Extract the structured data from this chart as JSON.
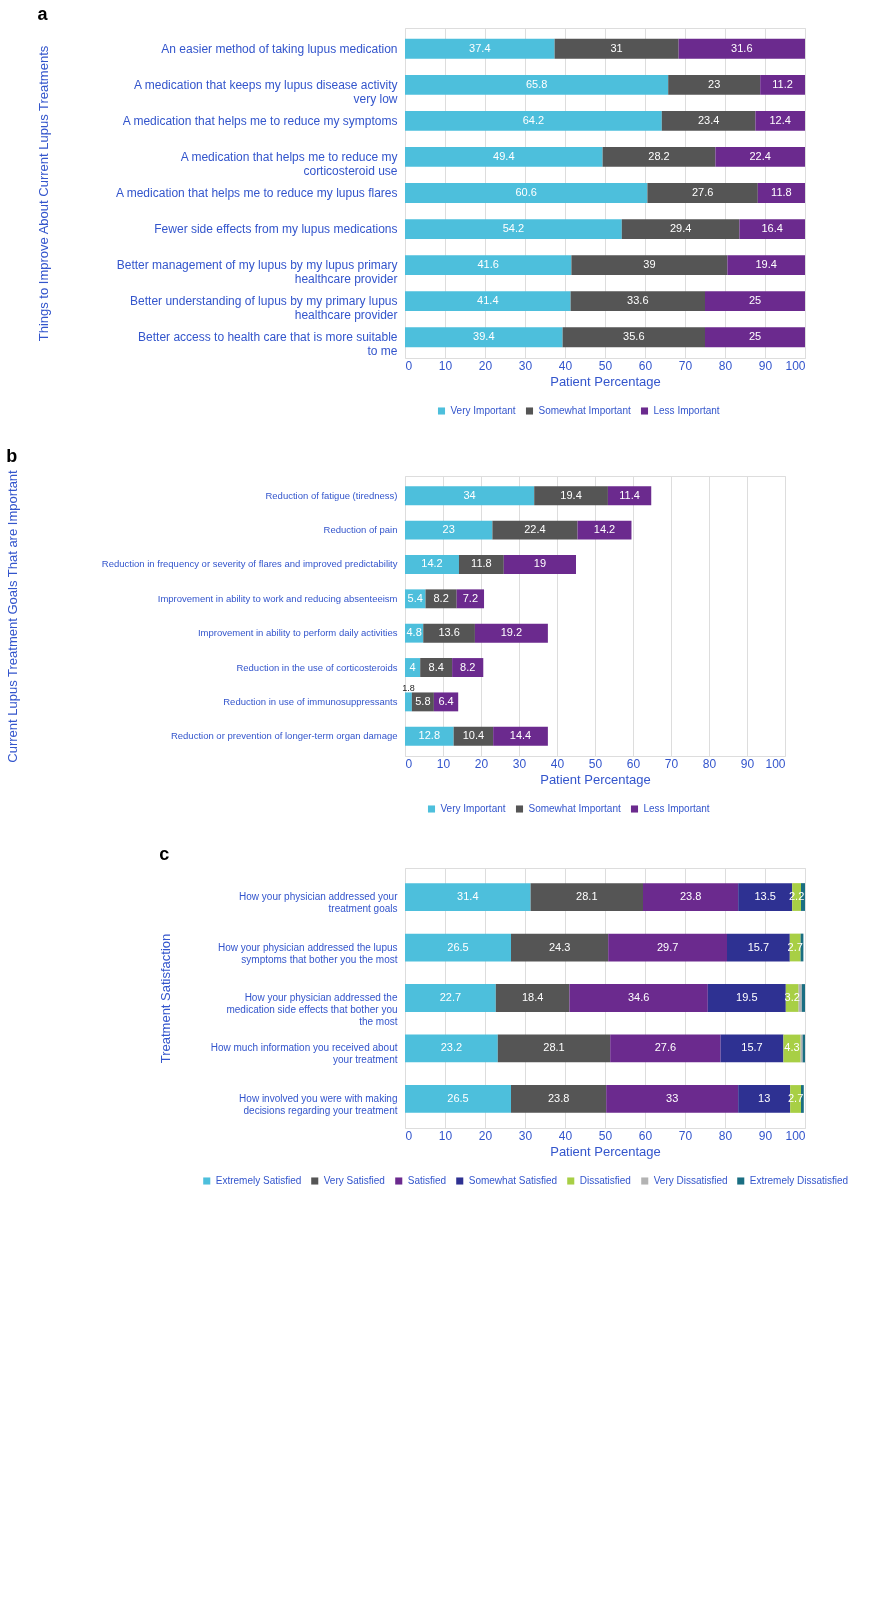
{
  "chart_data": [
    {
      "type": "bar",
      "title": "a",
      "orientation": "horizontal",
      "stacked": true,
      "data_labels": true,
      "grid": "x",
      "legend": "bottom",
      "ylabel": "Things to Improve About Current Lupus Treatments",
      "xlabel": "Patient Percentage",
      "xlim": [
        0,
        100
      ],
      "xticks": [
        0,
        10,
        20,
        30,
        40,
        50,
        60,
        70,
        80,
        90,
        100
      ],
      "categories": [
        "An easier method of taking lupus medication",
        "A medication that keeps my lupus disease activity very low",
        "A medication that helps me to reduce my symptoms",
        "A medication that helps me to reduce my corticosteroid use",
        "A medication that helps me to reduce my lupus flares",
        "Fewer side effects from my lupus medications",
        "Better management of my lupus by my lupus primary healthcare provider",
        "Better understanding of lupus by my primary lupus healthcare provider",
        "Better access to health care that is more suitable to me"
      ],
      "series": [
        {
          "name": "Very Important",
          "color": "#4dbfdc",
          "values": [
            37.4,
            65.8,
            64.2,
            49.4,
            60.6,
            54.2,
            41.6,
            41.4,
            39.4
          ]
        },
        {
          "name": "Somewhat Important",
          "color": "#555555",
          "values": [
            31,
            23,
            23.4,
            28.2,
            27.6,
            29.4,
            39,
            33.6,
            35.6
          ]
        },
        {
          "name": "Less Important",
          "color": "#6b2a8e",
          "values": [
            31.6,
            11.2,
            12.4,
            22.4,
            11.8,
            16.4,
            19.4,
            25,
            25
          ]
        }
      ]
    },
    {
      "type": "bar",
      "title": "b",
      "orientation": "horizontal",
      "stacked": true,
      "data_labels": true,
      "grid": "x",
      "legend": "bottom",
      "ylabel": "Current Lupus Treatment Goals That are Important",
      "xlabel": "Patient Percentage",
      "xlim": [
        0,
        100
      ],
      "xticks": [
        0,
        10,
        20,
        30,
        40,
        50,
        60,
        70,
        80,
        90,
        100
      ],
      "categories": [
        "Reduction of fatigue (tiredness)",
        "Reduction of pain",
        "Reduction in frequency or severity of flares and improved predictability",
        "Improvement in ability to work and reducing absenteeism",
        "Improvement in ability to perform daily activities",
        "Reduction in the use of corticosteroids",
        "Reduction in use of immunosuppressants",
        "Reduction or prevention of longer-term organ damage"
      ],
      "series": [
        {
          "name": "Very Important",
          "color": "#4dbfdc",
          "values": [
            34,
            23,
            14.2,
            5.4,
            4.8,
            4,
            1.8,
            12.8
          ]
        },
        {
          "name": "Somewhat Important",
          "color": "#555555",
          "values": [
            19.4,
            22.4,
            11.8,
            8.2,
            13.6,
            8.4,
            5.8,
            10.4
          ]
        },
        {
          "name": "Less Important",
          "color": "#6b2a8e",
          "values": [
            11.4,
            14.2,
            19,
            7.2,
            19.2,
            8.2,
            6.4,
            14.4
          ]
        }
      ]
    },
    {
      "type": "bar",
      "title": "c",
      "orientation": "horizontal",
      "stacked": true,
      "grid": "x",
      "legend": "bottom",
      "ylabel": "Treatment Satisfaction",
      "xlabel": "Patient Percentage",
      "xlim": [
        0,
        100
      ],
      "xticks": [
        0,
        10,
        20,
        30,
        40,
        50,
        60,
        70,
        80,
        90,
        100
      ],
      "categories": [
        "How your physician addressed your treatment goals",
        "How your physician addressed the lupus symptoms that bother you the most",
        "How your physician addressed the medication side effects that bother you the most",
        "How much information you received about your treatment",
        "How involved you were with making decisions regarding your treatment"
      ],
      "series": [
        {
          "name": "Extremely Satisfied",
          "color": "#4dbfdc",
          "values": [
            31.4,
            26.5,
            22.7,
            23.2,
            26.5
          ],
          "value_labels": [
            "31.4",
            "26.5",
            "22.7",
            "23.2",
            "26.5"
          ]
        },
        {
          "name": "Very Satisfied",
          "color": "#555555",
          "values": [
            28.1,
            24.3,
            18.4,
            28.1,
            23.8
          ],
          "value_labels": [
            "28.1",
            "24.3",
            "18.4",
            "28.1",
            "23.8"
          ]
        },
        {
          "name": "Satisfied",
          "color": "#6b2a8e",
          "values": [
            23.8,
            29.7,
            34.6,
            27.6,
            33
          ],
          "value_labels": [
            "23.8",
            "29.7",
            "34.6",
            "27.6",
            "33"
          ]
        },
        {
          "name": "Somewhat Satisfied",
          "color": "#2e3192",
          "values": [
            13.5,
            15.7,
            19.5,
            15.7,
            13
          ],
          "value_labels": [
            "13.5",
            "15.7",
            "19.5",
            "15.7",
            "13"
          ]
        },
        {
          "name": "Dissatisfied",
          "color": "#a8cf45",
          "values": [
            2.2,
            2.7,
            3.2,
            4.3,
            2.7
          ],
          "value_labels": [
            "2.2",
            "2.7",
            "3.2",
            "4.3",
            "2.7"
          ]
        },
        {
          "name": "Very Dissatisfied",
          "color": "#b3b3b3",
          "values": [
            null,
            null,
            0.8,
            0.5,
            null
          ],
          "value_labels": [
            null,
            null,
            null,
            null,
            null
          ]
        },
        {
          "name": "Extremely Dissatisfied",
          "color": "#1a6e82",
          "values": [
            1,
            0.7,
            0.8,
            0.6,
            0.7
          ],
          "value_labels": [
            null,
            null,
            null,
            null,
            null
          ]
        }
      ]
    }
  ]
}
